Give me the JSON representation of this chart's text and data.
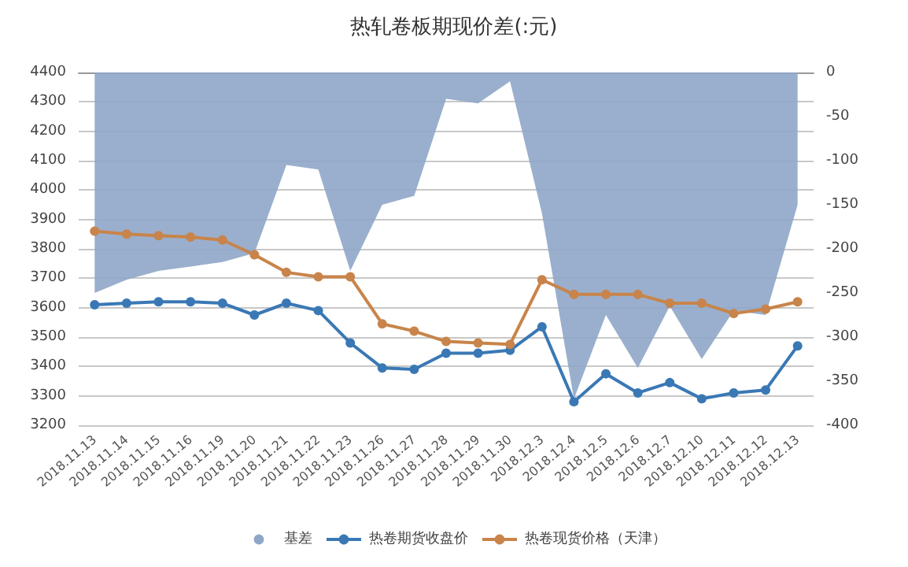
{
  "chart_data": {
    "type": "line",
    "title": "热轧卷板期现价差(:元)",
    "categories": [
      "2018.11.13",
      "2018.11.14",
      "2018.11.15",
      "2018.11.16",
      "2018.11.19",
      "2018.11.20",
      "2018.11.21",
      "2018.11.22",
      "2018.11.23",
      "2018.11.26",
      "2018.11.27",
      "2018.11.28",
      "2018.11.29",
      "2018.11.30",
      "2018.12.3",
      "2018.12.4",
      "2018.12.5",
      "2018.12.6",
      "2018.12.7",
      "2018.12.10",
      "2018.12.11",
      "2018.12.12",
      "2018.12.13"
    ],
    "series": [
      {
        "name": "基差",
        "type": "area",
        "axis": "y2",
        "color": "#8fa6c8",
        "marker": "none",
        "values": [
          -250,
          -235,
          -225,
          -220,
          -215,
          -205,
          -105,
          -110,
          -225,
          -150,
          -140,
          -30,
          -35,
          -10,
          -160,
          -370,
          -275,
          -335,
          -265,
          -325,
          -270,
          -275,
          -150
        ]
      },
      {
        "name": "热卷期货收盘价",
        "type": "line",
        "color": "#3a78b5",
        "marker": "circle",
        "values": [
          3610,
          3615,
          3620,
          3620,
          3615,
          3575,
          3615,
          3590,
          3480,
          3395,
          3390,
          3445,
          3445,
          3455,
          3535,
          3280,
          3375,
          3310,
          3345,
          3290,
          3310,
          3320,
          3470
        ]
      },
      {
        "name": "热卷现货价格（天津）",
        "type": "line",
        "color": "#c8844a",
        "marker": "circle",
        "values": [
          3860,
          3850,
          3845,
          3840,
          3830,
          3780,
          3720,
          3705,
          3705,
          3545,
          3520,
          3485,
          3480,
          3475,
          3695,
          3645,
          3645,
          3645,
          3615,
          3615,
          3580,
          3595,
          3620
        ]
      }
    ],
    "ylim": [
      3200,
      4400
    ],
    "yticks": [
      3200,
      3300,
      3400,
      3500,
      3600,
      3700,
      3800,
      3900,
      4000,
      4100,
      4200,
      4300,
      4400
    ],
    "y2lim": [
      -400,
      0
    ],
    "y2ticks": [
      -400,
      -350,
      -300,
      -250,
      -200,
      -150,
      -100,
      -50,
      0
    ],
    "grid": "y",
    "legend": "bottom"
  }
}
